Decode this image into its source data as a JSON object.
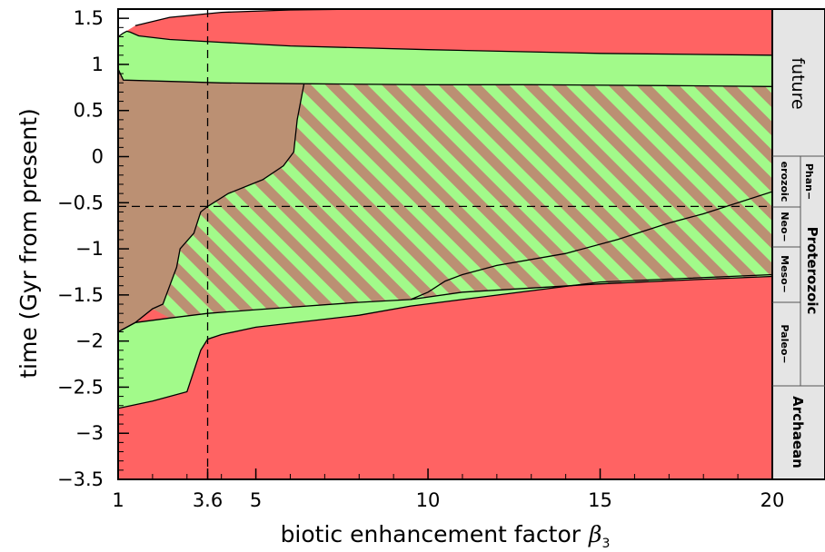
{
  "chart_data": {
    "type": "area",
    "title": "",
    "xlabel": "biotic enhancement factor",
    "xlabel_symbol": "β",
    "xlabel_subscript": "3",
    "ylabel": "time (Gyr from present)",
    "xlim": [
      1,
      20
    ],
    "ylim": [
      -3.5,
      1.6
    ],
    "x_ticks": [
      {
        "value": 1,
        "label": "1"
      },
      {
        "value": 3.6,
        "label": "3.6"
      },
      {
        "value": 5,
        "label": "5"
      },
      {
        "value": 10,
        "label": "10"
      },
      {
        "value": 15,
        "label": "15"
      },
      {
        "value": 20,
        "label": "20"
      }
    ],
    "y_ticks": [
      {
        "value": 1.5,
        "label": "1.5"
      },
      {
        "value": 1,
        "label": "1"
      },
      {
        "value": 0.5,
        "label": "0.5"
      },
      {
        "value": 0,
        "label": "0"
      },
      {
        "value": -0.5,
        "label": "−0.5"
      },
      {
        "value": -1,
        "label": "−1"
      },
      {
        "value": -1.5,
        "label": "−1.5"
      },
      {
        "value": -2,
        "label": "−2"
      },
      {
        "value": -2.5,
        "label": "−2.5"
      },
      {
        "value": -3,
        "label": "−3"
      },
      {
        "value": -3.5,
        "label": "−3.5"
      }
    ],
    "reference_lines": {
      "x": 3.6,
      "y": -0.54
    },
    "colors": {
      "red": "#ff6363",
      "green": "#a2fa8a",
      "brown": "#bb9073",
      "white": "#ffffff",
      "panel": "#e5e5e5"
    },
    "regions": [
      {
        "id": "top-white",
        "fill": "white",
        "points": [
          [
            1,
            1.3
          ],
          [
            1.15,
            1.34
          ],
          [
            1.5,
            1.42
          ],
          [
            2.5,
            1.51
          ],
          [
            4,
            1.565
          ],
          [
            6,
            1.59
          ],
          [
            8,
            1.6
          ],
          [
            1,
            1.6
          ]
        ]
      },
      {
        "id": "upper-green",
        "fill": "green",
        "points": [
          [
            1,
            1.3
          ],
          [
            1.15,
            1.34
          ],
          [
            1.25,
            1.36
          ],
          [
            1.35,
            1.35
          ],
          [
            1.6,
            1.31
          ],
          [
            2.5,
            1.27
          ],
          [
            4,
            1.24
          ],
          [
            6,
            1.2
          ],
          [
            10,
            1.16
          ],
          [
            15,
            1.12
          ],
          [
            20,
            1.1
          ],
          [
            20,
            0.76
          ],
          [
            17,
            0.77
          ],
          [
            13,
            0.78
          ],
          [
            10,
            0.78
          ],
          [
            6.6,
            0.79
          ],
          [
            4,
            0.8
          ],
          [
            3,
            0.81
          ],
          [
            1.15,
            0.83
          ],
          [
            1,
            0.95
          ]
        ]
      },
      {
        "id": "brown-core",
        "fill": "brown",
        "points": [
          [
            1,
            0.95
          ],
          [
            1.15,
            0.83
          ],
          [
            3,
            0.81
          ],
          [
            4,
            0.8
          ],
          [
            6.4,
            0.79
          ],
          [
            6.2,
            0.4
          ],
          [
            6.1,
            0.05
          ],
          [
            5.8,
            -0.1
          ],
          [
            5.2,
            -0.25
          ],
          [
            4.2,
            -0.4
          ],
          [
            3.6,
            -0.54
          ],
          [
            3.4,
            -0.6
          ],
          [
            3.2,
            -0.83
          ],
          [
            2.8,
            -1.0
          ],
          [
            2.7,
            -1.2
          ],
          [
            2.5,
            -1.4
          ],
          [
            2.3,
            -1.6
          ],
          [
            2,
            -1.65
          ],
          [
            1.5,
            -1.8
          ],
          [
            1,
            -1.9
          ]
        ]
      },
      {
        "id": "lower-green",
        "fill": "green",
        "points": [
          [
            1,
            -1.9
          ],
          [
            1.5,
            -1.8
          ],
          [
            2.5,
            -1.75
          ],
          [
            3.6,
            -1.7
          ],
          [
            5,
            -1.66
          ],
          [
            8,
            -1.58
          ],
          [
            9.5,
            -1.55
          ],
          [
            11,
            -1.47
          ],
          [
            15,
            -1.38
          ],
          [
            18,
            -1.33
          ],
          [
            20,
            -1.3
          ],
          [
            20,
            -1.28
          ],
          [
            15,
            -1.36
          ],
          [
            11,
            -1.55
          ],
          [
            9.5,
            -1.62
          ],
          [
            8,
            -1.72
          ],
          [
            5,
            -1.85
          ],
          [
            4,
            -1.93
          ],
          [
            3.6,
            -1.98
          ],
          [
            3.4,
            -2.1
          ],
          [
            3,
            -2.55
          ],
          [
            2,
            -2.65
          ],
          [
            1,
            -2.73
          ]
        ]
      },
      {
        "id": "lower-red",
        "fill": "red",
        "points": [
          [
            1,
            -2.73
          ],
          [
            2,
            -2.65
          ],
          [
            3,
            -2.55
          ],
          [
            3.4,
            -2.1
          ],
          [
            3.6,
            -1.98
          ],
          [
            4,
            -1.93
          ],
          [
            5,
            -1.85
          ],
          [
            8,
            -1.72
          ],
          [
            9.5,
            -1.62
          ],
          [
            11,
            -1.55
          ],
          [
            15,
            -1.36
          ],
          [
            20,
            -1.28
          ],
          [
            20,
            -3.5
          ],
          [
            1,
            -3.5
          ]
        ]
      },
      {
        "id": "right-red-wedge",
        "fill": "red",
        "points": [
          [
            9.5,
            -1.55
          ],
          [
            10,
            -1.47
          ],
          [
            10.5,
            -1.35
          ],
          [
            11,
            -1.28
          ],
          [
            12,
            -1.18
          ],
          [
            14,
            -1.05
          ],
          [
            15.5,
            -0.9
          ],
          [
            17,
            -0.72
          ],
          [
            18,
            -0.62
          ],
          [
            20,
            -0.38
          ],
          [
            20,
            -1.3
          ],
          [
            18,
            -1.33
          ],
          [
            15,
            -1.38
          ],
          [
            11,
            -1.47
          ]
        ]
      }
    ],
    "hatched_region": {
      "fills": [
        "green",
        "brown"
      ],
      "points": [
        [
          6.6,
          0.79
        ],
        [
          10,
          0.78
        ],
        [
          13,
          0.78
        ],
        [
          17,
          0.77
        ],
        [
          20,
          0.76
        ],
        [
          20,
          -1.3
        ],
        [
          18,
          -1.33
        ],
        [
          15,
          -1.38
        ],
        [
          11,
          -1.47
        ],
        [
          9.5,
          -1.55
        ],
        [
          8,
          -1.58
        ],
        [
          5,
          -1.66
        ],
        [
          3.6,
          -1.7
        ],
        [
          2.5,
          -1.75
        ],
        [
          2,
          -1.65
        ],
        [
          2.3,
          -1.6
        ],
        [
          2.5,
          -1.4
        ],
        [
          2.7,
          -1.2
        ],
        [
          2.8,
          -1.0
        ],
        [
          3.2,
          -0.83
        ],
        [
          3.4,
          -0.6
        ],
        [
          3.6,
          -0.54
        ],
        [
          4.2,
          -0.4
        ],
        [
          5.2,
          -0.25
        ],
        [
          5.8,
          -0.1
        ],
        [
          6.1,
          0.05
        ],
        [
          6.2,
          0.4
        ],
        [
          6.4,
          0.79
        ]
      ]
    },
    "boundary_lines": [
      [
        [
          1,
          1.3
        ],
        [
          1.15,
          1.34
        ],
        [
          1.25,
          1.36
        ],
        [
          1.35,
          1.35
        ],
        [
          1.6,
          1.31
        ],
        [
          2.5,
          1.27
        ],
        [
          4,
          1.24
        ],
        [
          6,
          1.2
        ],
        [
          10,
          1.16
        ],
        [
          15,
          1.12
        ],
        [
          20,
          1.1
        ]
      ],
      [
        [
          1,
          0.95
        ],
        [
          1.15,
          0.83
        ],
        [
          3,
          0.81
        ],
        [
          4,
          0.8
        ],
        [
          6.6,
          0.79
        ],
        [
          10,
          0.78
        ],
        [
          13,
          0.78
        ],
        [
          17,
          0.77
        ],
        [
          20,
          0.76
        ]
      ],
      [
        [
          6.4,
          0.79
        ],
        [
          6.2,
          0.4
        ],
        [
          6.1,
          0.05
        ],
        [
          5.8,
          -0.1
        ],
        [
          5.2,
          -0.25
        ],
        [
          4.2,
          -0.4
        ],
        [
          3.6,
          -0.54
        ],
        [
          3.4,
          -0.6
        ],
        [
          3.2,
          -0.83
        ],
        [
          2.8,
          -1.0
        ],
        [
          2.7,
          -1.2
        ],
        [
          2.5,
          -1.4
        ],
        [
          2.3,
          -1.6
        ],
        [
          2,
          -1.65
        ],
        [
          1.5,
          -1.8
        ],
        [
          1,
          -1.9
        ]
      ],
      [
        [
          1,
          -1.9
        ],
        [
          1.5,
          -1.8
        ],
        [
          2.5,
          -1.75
        ],
        [
          3.6,
          -1.7
        ],
        [
          5,
          -1.66
        ],
        [
          8,
          -1.58
        ],
        [
          9.5,
          -1.55
        ],
        [
          11,
          -1.47
        ],
        [
          15,
          -1.38
        ],
        [
          18,
          -1.33
        ],
        [
          20,
          -1.3
        ]
      ],
      [
        [
          9.5,
          -1.55
        ],
        [
          10,
          -1.47
        ],
        [
          10.5,
          -1.35
        ],
        [
          11,
          -1.28
        ],
        [
          12,
          -1.18
        ],
        [
          14,
          -1.05
        ],
        [
          15.5,
          -0.9
        ],
        [
          17,
          -0.72
        ],
        [
          18,
          -0.62
        ],
        [
          20,
          -0.38
        ]
      ],
      [
        [
          1,
          -2.73
        ],
        [
          2,
          -2.65
        ],
        [
          3,
          -2.55
        ],
        [
          3.4,
          -2.1
        ],
        [
          3.6,
          -1.98
        ],
        [
          4,
          -1.93
        ],
        [
          5,
          -1.85
        ],
        [
          8,
          -1.72
        ],
        [
          9.5,
          -1.62
        ],
        [
          11,
          -1.55
        ],
        [
          15,
          -1.36
        ],
        [
          20,
          -1.28
        ]
      ],
      [
        [
          1.5,
          1.42
        ],
        [
          2.5,
          1.51
        ],
        [
          4,
          1.565
        ],
        [
          6,
          1.59
        ],
        [
          8,
          1.6
        ]
      ]
    ]
  },
  "eras": {
    "future": "future",
    "phanerozoic_1": "Phan−",
    "phanerozoic_2": "erozoic",
    "neo": "Neo−",
    "meso": "Meso−",
    "paleo": "Paleo−",
    "proterozoic": "Proterozoic",
    "archaean": "Archaean"
  }
}
